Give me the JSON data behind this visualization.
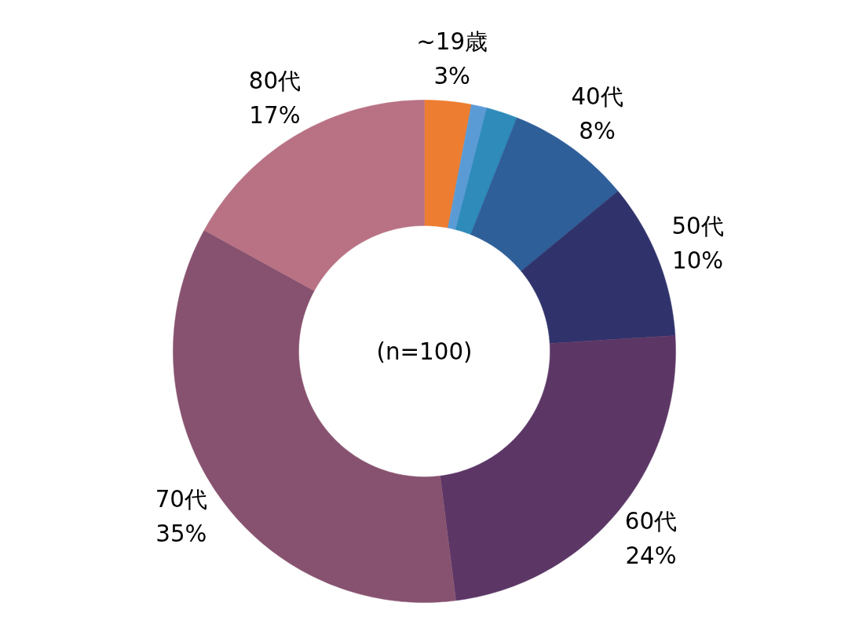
{
  "chart_data": {
    "type": "donut",
    "categories": [
      "~19歳",
      null,
      null,
      "40代",
      "50代",
      "60代",
      "70代",
      "80代"
    ],
    "values": [
      3,
      1,
      2,
      8,
      10,
      24,
      35,
      17
    ],
    "colors": [
      "#ed7d31",
      "#5b9bd5",
      "#2e8bba",
      "#2e5f99",
      "#30336b",
      "#5c3766",
      "#87526f",
      "#b87284"
    ],
    "value_labels": [
      "3%",
      null,
      null,
      "8%",
      "10%",
      "24%",
      "35%",
      "17%"
    ],
    "annotations": [
      "(n=100)"
    ]
  }
}
